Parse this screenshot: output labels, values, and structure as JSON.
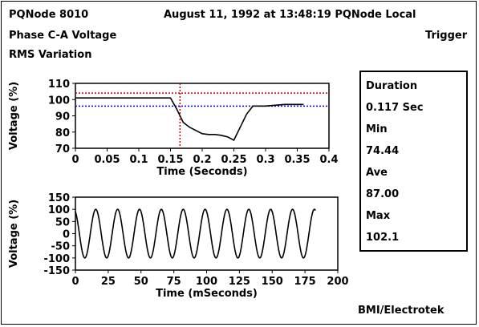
{
  "header": {
    "device": "PQNode 8010",
    "timestamp_line": "August 11, 1992 at 13:48:19 PQNode Local",
    "subtitle": "Phase C-A Voltage",
    "trigger": "Trigger",
    "event_type": "RMS Variation"
  },
  "stats": {
    "duration_label": "Duration",
    "duration_value": "0.117 Sec",
    "min_label": "Min",
    "min_value": "74.44",
    "ave_label": "Ave",
    "ave_value": "87.00",
    "max_label": "Max",
    "max_value": "102.1"
  },
  "footer": {
    "vendor": "BMI/Electrotek"
  },
  "chart_data": [
    {
      "type": "line",
      "xlabel": "Time (Seconds)",
      "ylabel": "Voltage (%)",
      "xlim": [
        0,
        0.4
      ],
      "ylim": [
        70,
        110
      ],
      "xticks": [
        0,
        0.05,
        0.1,
        0.15,
        0.2,
        0.25,
        0.3,
        0.35,
        0.4
      ],
      "xtick_labels": [
        "0",
        "0.05",
        "0.1",
        "0.15",
        "0.2",
        "0.25",
        "0.3",
        "0.35",
        "0.4"
      ],
      "yticks": [
        70,
        80,
        90,
        100,
        110
      ],
      "ytick_labels": [
        "70",
        "80",
        "90",
        "100",
        "110"
      ],
      "series": [
        {
          "x": [
            0.0,
            0.04,
            0.08,
            0.12,
            0.15,
            0.16,
            0.17,
            0.18,
            0.2,
            0.21,
            0.22,
            0.23,
            0.24,
            0.25,
            0.26,
            0.27,
            0.28,
            0.3,
            0.33,
            0.36
          ],
          "y": [
            101,
            101,
            101,
            101,
            101,
            94,
            86,
            83,
            79,
            78.5,
            78.5,
            78,
            77,
            75,
            83,
            91,
            96,
            96,
            97,
            97
          ],
          "color": "#000000"
        }
      ],
      "reference_lines": [
        {
          "axis": "y",
          "value": 104,
          "color": "#cc0000",
          "style": "dotted"
        },
        {
          "axis": "y",
          "value": 96,
          "color": "#0000cc",
          "style": "dotted"
        },
        {
          "axis": "x",
          "value": 0.165,
          "color": "#cc0000",
          "style": "dotted"
        }
      ]
    },
    {
      "type": "line",
      "xlabel": "Time (mSeconds)",
      "ylabel": "Voltage (%)",
      "xlim": [
        0,
        200
      ],
      "ylim": [
        -150,
        150
      ],
      "xticks": [
        0,
        25,
        50,
        75,
        100,
        125,
        150,
        175,
        200
      ],
      "xtick_labels": [
        "0",
        "25",
        "50",
        "75",
        "100",
        "125",
        "150",
        "175",
        "200"
      ],
      "yticks": [
        -150,
        -100,
        -50,
        0,
        50,
        100,
        150
      ],
      "ytick_labels": [
        "-150",
        "-100",
        "-50",
        "0",
        "50",
        "100",
        "150"
      ],
      "series": [
        {
          "x_start": 0,
          "x_end": 183,
          "frequency_hz": 60,
          "amplitude": 100,
          "phase_deg": 115,
          "color": "#000000"
        }
      ]
    }
  ]
}
